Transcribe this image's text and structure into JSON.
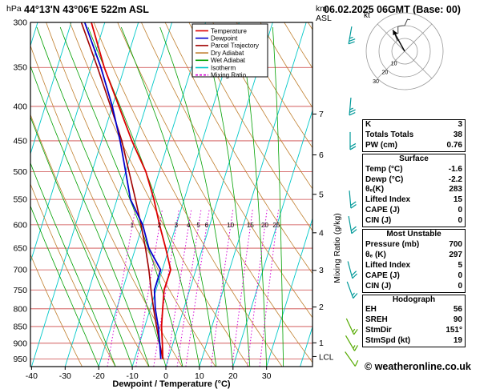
{
  "header": {
    "pressure_unit": "hPa",
    "title": "44°13'N 43°06'E 522m ASL",
    "date": "06.02.2025 06GMT (Base: 00)",
    "km_label": "km",
    "asl_label": "ASL"
  },
  "axes": {
    "x_label": "Dewpoint / Temperature (°C)",
    "x_ticks": [
      -40,
      -30,
      -20,
      -10,
      0,
      10,
      20,
      30
    ],
    "pressure_ticks": [
      300,
      350,
      400,
      450,
      500,
      550,
      600,
      650,
      700,
      750,
      800,
      850,
      900,
      950
    ],
    "km_ticks": [
      1,
      2,
      3,
      4,
      5,
      6,
      7
    ],
    "lcl_label": "LCL",
    "mixing_ratio_axis_label": "Mixing Ratio (g/kg)",
    "mixing_ratio_values": [
      1,
      2,
      3,
      4,
      5,
      6,
      10,
      15,
      20,
      25
    ]
  },
  "legend": [
    {
      "label": "Temperature",
      "color_key": "temperature"
    },
    {
      "label": "Dewpoint",
      "color_key": "dewpoint"
    },
    {
      "label": "Parcel Trajectory",
      "color_key": "parcel"
    },
    {
      "label": "Dry Adiabat",
      "color_key": "dry_adiabat"
    },
    {
      "label": "Wet Adiabat",
      "color_key": "wet_adiabat"
    },
    {
      "label": "Isotherm",
      "color_key": "isotherm"
    },
    {
      "label": "Mixing Ratio",
      "color_key": "mixing_ratio",
      "dashed": true
    }
  ],
  "colors": {
    "temperature": "#dd0000",
    "dewpoint": "#0000cc",
    "parcel": "#a00000",
    "dry_adiabat": "#c08030",
    "wet_adiabat": "#00a000",
    "isotherm": "#00c8c8",
    "mixing_ratio": "#d400d4",
    "pressure_line": "#cc4444",
    "wind_barb_upper": "#009999",
    "wind_barb_lower": "#55aa00"
  },
  "chart_data": {
    "type": "skewt-sounding",
    "pressure_unit": "hPa",
    "temperature_unit": "°C",
    "pressure_axis_range": [
      300,
      975
    ],
    "temp_axis_range": [
      -40,
      35
    ],
    "pressure_levels": [
      950,
      900,
      850,
      800,
      750,
      700,
      650,
      600,
      550,
      500,
      450,
      400,
      350,
      300
    ],
    "temperature": [
      -1.6,
      -3.2,
      -5.0,
      -6.3,
      -7.6,
      -7.5,
      -11,
      -15,
      -19,
      -24,
      -31,
      -38,
      -46,
      -54
    ],
    "dewpoint": [
      -2.2,
      -4.0,
      -6.0,
      -8.5,
      -10.5,
      -10.5,
      -16,
      -20,
      -26,
      -30,
      -34.5,
      -40,
      -47,
      -56
    ],
    "parcel": [
      -1.6,
      -4.0,
      -6.5,
      -9.0,
      -11.5,
      -14.0,
      -17,
      -20.5,
      -24.5,
      -29,
      -34,
      -40.5,
      -48,
      -57
    ],
    "lcl_pressure": 942,
    "winds": [
      {
        "p": 300,
        "dir": 190,
        "spd": 25
      },
      {
        "p": 400,
        "dir": 185,
        "spd": 25
      },
      {
        "p": 450,
        "dir": 180,
        "spd": 20
      },
      {
        "p": 550,
        "dir": 175,
        "spd": 20
      },
      {
        "p": 600,
        "dir": 170,
        "spd": 20
      },
      {
        "p": 700,
        "dir": 165,
        "spd": 20
      },
      {
        "p": 750,
        "dir": 160,
        "spd": 15
      },
      {
        "p": 850,
        "dir": 155,
        "spd": 15
      },
      {
        "p": 900,
        "dir": 150,
        "spd": 15
      },
      {
        "p": 950,
        "dir": 145,
        "spd": 10
      }
    ]
  },
  "hodograph": {
    "unit_label": "kt",
    "ring_values": [
      10,
      20,
      30
    ],
    "storm_dir_deg": 151,
    "storm_spd_kt": 19
  },
  "stats": {
    "groups": [
      {
        "rows": [
          [
            "K",
            "3"
          ],
          [
            "Totals Totals",
            "38"
          ],
          [
            "PW (cm)",
            "0.76"
          ]
        ]
      },
      {
        "title": "Surface",
        "rows": [
          [
            "Temp (°C)",
            "-1.6"
          ],
          [
            "Dewp (°C)",
            "-2.2"
          ],
          [
            "θₑ(K)",
            "283"
          ],
          [
            "Lifted Index",
            "15"
          ],
          [
            "CAPE (J)",
            "0"
          ],
          [
            "CIN (J)",
            "0"
          ]
        ]
      },
      {
        "title": "Most Unstable",
        "rows": [
          [
            "Pressure (mb)",
            "700"
          ],
          [
            "θₑ (K)",
            "297"
          ],
          [
            "Lifted Index",
            "5"
          ],
          [
            "CAPE (J)",
            "0"
          ],
          [
            "CIN (J)",
            "0"
          ]
        ]
      },
      {
        "title": "Hodograph",
        "rows": [
          [
            "EH",
            "56"
          ],
          [
            "SREH",
            "90"
          ],
          [
            "StmDir",
            "151°"
          ],
          [
            "StmSpd (kt)",
            "19"
          ]
        ]
      }
    ]
  },
  "footer": {
    "copyright": "© weatheronline.co.uk"
  }
}
